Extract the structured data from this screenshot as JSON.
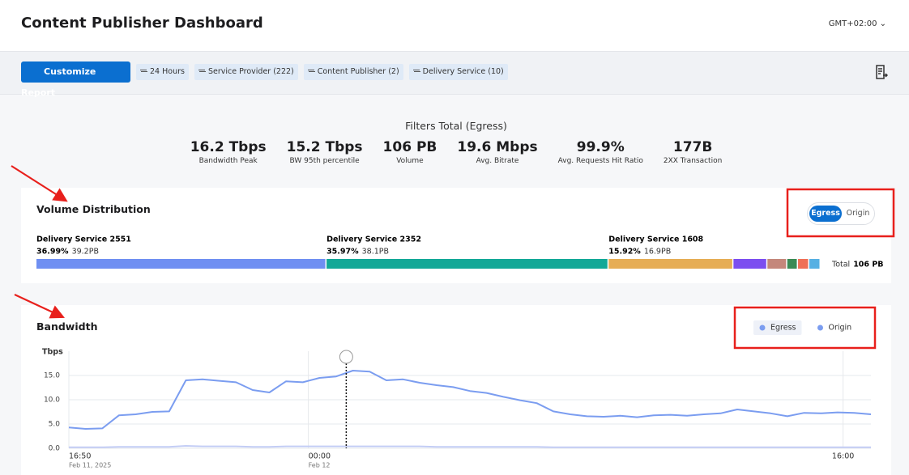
{
  "header": {
    "title": "Content Publisher Dashboard",
    "timezone": "GMT+02:00"
  },
  "toolbar": {
    "button": "Customize Report",
    "filters": [
      "24 Hours",
      "Service Provider (222)",
      "Content Publisher (2)",
      "Delivery Service (10)"
    ]
  },
  "kpis": {
    "title": "Filters Total (Egress)",
    "items": [
      {
        "value": "16.2 Tbps",
        "label": "Bandwidth Peak"
      },
      {
        "value": "15.2 Tbps",
        "label": "BW 95th percentile"
      },
      {
        "value": "106 PB",
        "label": "Volume"
      },
      {
        "value": "19.6 Mbps",
        "label": "Avg. Bitrate"
      },
      {
        "value": "99.9%",
        "label": "Avg. Requests Hit Ratio"
      },
      {
        "value": "177B",
        "label": "2XX Transaction"
      }
    ]
  },
  "volume_distribution": {
    "type": "stacked-bar",
    "title": "Volume Distribution",
    "toggle": [
      "Egress",
      "Origin"
    ],
    "categories": [
      "Delivery Service 2551",
      "Delivery Service 2352",
      "Delivery Service 1608",
      null,
      null,
      null,
      null,
      null
    ],
    "values": [
      36.99,
      35.97,
      15.92,
      4.33,
      2.53,
      1.37,
      1.44,
      1.45
    ],
    "value_labels": [
      "36.99%",
      "35.97%",
      "15.92%",
      null,
      null,
      null,
      null,
      null
    ],
    "volumes": [
      "39.2PB",
      "38.1PB",
      "16.9PB",
      null,
      null,
      null,
      null,
      null
    ],
    "colors": [
      "#6f8ff2",
      "#13a897",
      "#e6ad55",
      "#7c4ef0",
      "#c4877b",
      "#3a8a55",
      "#ef7057",
      "#56b0e3"
    ],
    "total_label": "Total",
    "total": "106 PB"
  },
  "chart_data": {
    "type": "line",
    "title": "Bandwidth",
    "y_label": "Tbps",
    "x": [
      0,
      0.5,
      1,
      1.5,
      2,
      2.5,
      3,
      3.5,
      4,
      4.5,
      5,
      5.5,
      6,
      6.5,
      7,
      7.5,
      8,
      8.5,
      9,
      9.5,
      10,
      10.5,
      11,
      11.5,
      12,
      12.5,
      13,
      13.5,
      14,
      14.5,
      15,
      15.5,
      16,
      16.5,
      17,
      17.5,
      18,
      18.5,
      19,
      19.5,
      20,
      20.5,
      21,
      21.5,
      22,
      22.5,
      23,
      23.5,
      24
    ],
    "series": [
      {
        "name": "Egress",
        "color": "#7b9df0",
        "values": [
          4.3,
          4.0,
          4.1,
          6.8,
          7.0,
          7.5,
          7.6,
          14.0,
          14.2,
          13.9,
          13.6,
          12.0,
          11.5,
          13.8,
          13.6,
          14.5,
          14.8,
          16.0,
          15.8,
          14.0,
          14.2,
          13.5,
          13.0,
          12.6,
          11.8,
          11.4,
          10.6,
          9.9,
          9.3,
          7.6,
          7.0,
          6.6,
          6.5,
          6.7,
          6.4,
          6.8,
          6.9,
          6.7,
          7.0,
          7.2,
          8.0,
          7.6,
          7.2,
          6.6,
          7.3,
          7.2,
          7.4,
          7.3,
          7.0
        ]
      },
      {
        "name": "Origin",
        "color": "#c3cdf5",
        "values": [
          0.2,
          0.2,
          0.2,
          0.3,
          0.3,
          0.3,
          0.3,
          0.5,
          0.4,
          0.4,
          0.4,
          0.3,
          0.3,
          0.4,
          0.4,
          0.4,
          0.4,
          0.4,
          0.4,
          0.4,
          0.4,
          0.4,
          0.3,
          0.3,
          0.3,
          0.3,
          0.3,
          0.3,
          0.3,
          0.2,
          0.2,
          0.2,
          0.2,
          0.2,
          0.2,
          0.2,
          0.2,
          0.2,
          0.2,
          0.2,
          0.2,
          0.2,
          0.2,
          0.2,
          0.2,
          0.2,
          0.2,
          0.2,
          0.2
        ]
      }
    ],
    "xlim": [
      0,
      24
    ],
    "xticks": [
      {
        "value": 0,
        "label": "16:50"
      },
      {
        "value": 7.1667,
        "label": "00:00"
      },
      {
        "value": 23.1667,
        "label": "16:00"
      }
    ],
    "xtick_dates": [
      "Feb 11, 2025",
      "Feb 12",
      null
    ],
    "ylim": [
      0,
      20
    ],
    "yticks": [
      {
        "value": 0,
        "label": "0.0"
      },
      {
        "value": 5,
        "label": "5.0"
      },
      {
        "value": 10,
        "label": "10.0"
      },
      {
        "value": 15,
        "label": "15.0"
      }
    ],
    "grid": true,
    "cursor_x": 8.3
  }
}
